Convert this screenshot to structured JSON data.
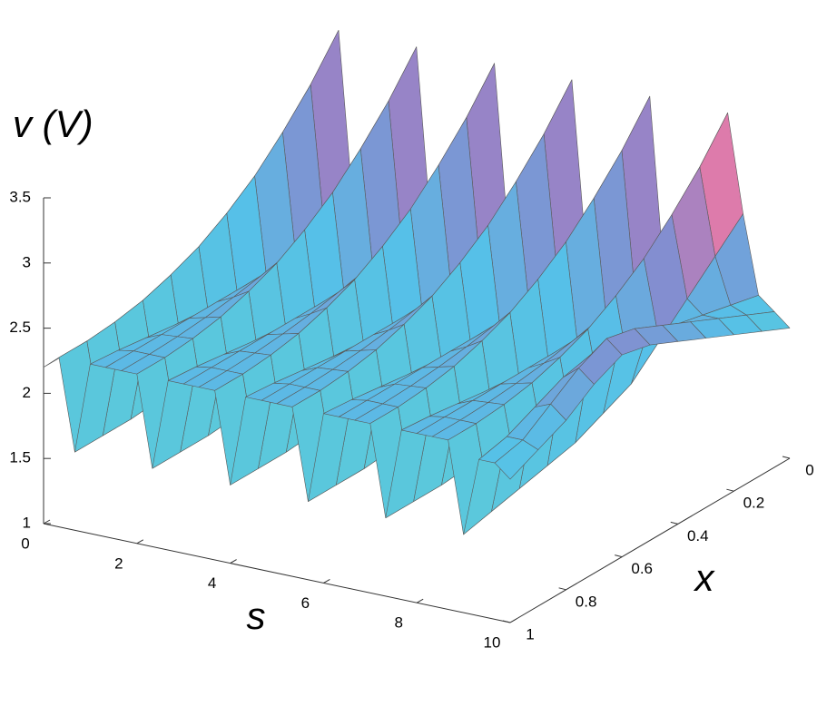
{
  "chart_data": {
    "type": "surface",
    "z_label": "v (V)",
    "s_label": "s",
    "x_label": "x",
    "slim": [
      0,
      10
    ],
    "sticks": [
      0,
      2,
      4,
      6,
      8,
      10
    ],
    "xlim": [
      0,
      1
    ],
    "xticks": [
      0,
      0.2,
      0.4,
      0.6,
      0.8,
      1
    ],
    "zlim": [
      1,
      3.5
    ],
    "zticks": [
      1,
      1.5,
      2,
      2.5,
      3,
      3.5
    ],
    "colormap": [
      "#e8e070",
      "#9ad88a",
      "#5ccad8",
      "#56c0e8",
      "#8a86cc",
      "#e47aa8",
      "#f08868"
    ],
    "edge_color": "#5a5a5a",
    "s": [
      0,
      0.33,
      0.67,
      1,
      1.33,
      1.67,
      2,
      2.33,
      2.67,
      3,
      3.33,
      3.67,
      4,
      4.33,
      4.67,
      5,
      5.33,
      5.67,
      6,
      6.33,
      6.67,
      7,
      7.33,
      7.67,
      8,
      8.33,
      8.67,
      9,
      9.33,
      9.67,
      10
    ],
    "x": [
      0,
      0.1,
      0.2,
      0.3,
      0.4,
      0.5,
      0.6,
      0.7,
      0.8,
      0.9,
      1
    ],
    "z": [
      [
        2.2,
        2.2,
        2.2,
        2.2,
        2.2,
        2.2,
        2.2,
        2.2,
        2.2,
        2.2,
        2.2
      ],
      [
        3.55,
        3.26,
        3.02,
        2.81,
        2.65,
        2.52,
        2.43,
        2.36,
        2.32,
        2.3,
        2.3
      ],
      [
        2.1,
        2,
        1.9,
        1.8,
        1.75,
        1.7,
        1.65,
        1.62,
        1.6,
        1.6,
        1.6
      ],
      [
        2.3,
        2.25,
        2.2,
        2.2,
        2.2,
        2.2,
        2.2,
        2.22,
        2.25,
        2.28,
        2.3
      ],
      [
        2.5,
        2.42,
        2.36,
        2.32,
        2.3,
        2.3,
        2.3,
        2.3,
        2.3,
        2.3,
        2.3
      ],
      [
        2.9,
        2.75,
        2.62,
        2.52,
        2.45,
        2.4,
        2.36,
        2.33,
        2.31,
        2.3,
        2.3
      ],
      [
        3.55,
        3.26,
        3.02,
        2.81,
        2.65,
        2.52,
        2.43,
        2.36,
        2.32,
        2.3,
        2.3
      ],
      [
        2.1,
        2,
        1.9,
        1.8,
        1.75,
        1.7,
        1.65,
        1.62,
        1.6,
        1.6,
        1.6
      ],
      [
        2.3,
        2.25,
        2.2,
        2.2,
        2.2,
        2.2,
        2.2,
        2.22,
        2.25,
        2.28,
        2.3
      ],
      [
        2.5,
        2.42,
        2.36,
        2.32,
        2.3,
        2.3,
        2.3,
        2.3,
        2.3,
        2.3,
        2.3
      ],
      [
        2.9,
        2.75,
        2.62,
        2.52,
        2.45,
        2.4,
        2.36,
        2.33,
        2.31,
        2.3,
        2.3
      ],
      [
        3.55,
        3.26,
        3.02,
        2.81,
        2.65,
        2.52,
        2.43,
        2.36,
        2.32,
        2.3,
        2.3
      ],
      [
        2.1,
        2,
        1.9,
        1.8,
        1.75,
        1.7,
        1.65,
        1.62,
        1.6,
        1.6,
        1.6
      ],
      [
        2.3,
        2.25,
        2.2,
        2.2,
        2.2,
        2.2,
        2.2,
        2.22,
        2.25,
        2.28,
        2.3
      ],
      [
        2.5,
        2.42,
        2.36,
        2.32,
        2.3,
        2.3,
        2.3,
        2.3,
        2.3,
        2.3,
        2.3
      ],
      [
        2.9,
        2.75,
        2.62,
        2.52,
        2.45,
        2.4,
        2.36,
        2.33,
        2.31,
        2.3,
        2.3
      ],
      [
        3.55,
        3.26,
        3.02,
        2.81,
        2.65,
        2.52,
        2.43,
        2.36,
        2.32,
        2.3,
        2.3
      ],
      [
        2.1,
        2,
        1.9,
        1.8,
        1.75,
        1.7,
        1.65,
        1.62,
        1.6,
        1.6,
        1.6
      ],
      [
        2.3,
        2.25,
        2.2,
        2.2,
        2.2,
        2.2,
        2.2,
        2.22,
        2.25,
        2.28,
        2.3
      ],
      [
        2.5,
        2.42,
        2.36,
        2.32,
        2.3,
        2.3,
        2.3,
        2.3,
        2.3,
        2.3,
        2.3
      ],
      [
        2.9,
        2.75,
        2.62,
        2.52,
        2.45,
        2.4,
        2.36,
        2.33,
        2.31,
        2.3,
        2.3
      ],
      [
        3.55,
        3.26,
        3.02,
        2.81,
        2.65,
        2.52,
        2.43,
        2.36,
        2.32,
        2.3,
        2.3
      ],
      [
        2.1,
        2,
        1.9,
        1.8,
        1.75,
        1.7,
        1.65,
        1.62,
        1.6,
        1.6,
        1.6
      ],
      [
        2.3,
        2.25,
        2.2,
        2.2,
        2.2,
        2.2,
        2.2,
        2.22,
        2.25,
        2.28,
        2.3
      ],
      [
        2.5,
        2.42,
        2.36,
        2.32,
        2.3,
        2.3,
        2.3,
        2.3,
        2.3,
        2.3,
        2.3
      ],
      [
        2.9,
        2.75,
        2.62,
        2.52,
        2.45,
        2.4,
        2.36,
        2.33,
        2.31,
        2.3,
        2.3
      ],
      [
        3.55,
        3.26,
        3.02,
        2.81,
        2.65,
        2.52,
        2.43,
        2.36,
        2.32,
        2.3,
        2.3
      ],
      [
        2.8,
        2.6,
        2.4,
        2.2,
        2,
        1.9,
        1.8,
        1.75,
        1.7,
        1.65,
        1.6
      ],
      [
        2.2,
        2.25,
        2.3,
        2.35,
        2.4,
        2.45,
        2.5,
        2.45,
        2.35,
        2.25,
        2.2
      ],
      [
        2.1,
        2.2,
        2.3,
        2.4,
        2.5,
        2.6,
        2.65,
        2.55,
        2.4,
        2.25,
        2.2
      ],
      [
        2,
        2.1,
        2.2,
        2.3,
        2.4,
        2.5,
        2.55,
        2.45,
        2.3,
        2.2,
        2.1
      ]
    ]
  }
}
